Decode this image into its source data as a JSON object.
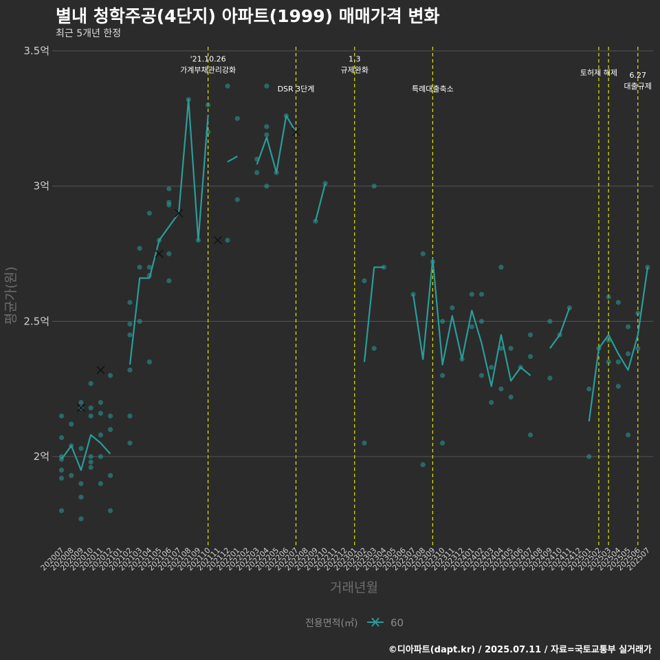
{
  "title": "별내 청학주공(4단지) 아파트(1999) 매매가격 변화",
  "subtitle": "최근 5개년 한정",
  "footer": "©디아파트(dapt.kr) / 2025.07.11 / 자료=국토교통부 실거래가",
  "colors": {
    "background": "#2b2b2b",
    "series": "#2a9d9a",
    "vline": "#e6e600",
    "grid": "#555555"
  },
  "chart_data": {
    "type": "line",
    "title": "별내 청학주공(4단지) 아파트(1999) 매매가격 변화",
    "xlabel": "거래년월",
    "ylabel": "평균가(원)",
    "ylim": [
      1.68,
      3.5
    ],
    "yticks": [
      {
        "value": 2.0,
        "label": "2억"
      },
      {
        "value": 2.5,
        "label": "2.5억"
      },
      {
        "value": 3.0,
        "label": "3억"
      },
      {
        "value": 3.5,
        "label": "3.5억"
      }
    ],
    "categories": [
      "202007",
      "202008",
      "202009",
      "202010",
      "202011",
      "202012",
      "202101",
      "202102",
      "202103",
      "202104",
      "202105",
      "202106",
      "202107",
      "202108",
      "202109",
      "202110",
      "202111",
      "202112",
      "202201",
      "202202",
      "202203",
      "202204",
      "202205",
      "202206",
      "202207",
      "202208",
      "202209",
      "202210",
      "202211",
      "202212",
      "202301",
      "202302",
      "202303",
      "202304",
      "202305",
      "202306",
      "202307",
      "202308",
      "202309",
      "202310",
      "202311",
      "202312",
      "202401",
      "202402",
      "202403",
      "202404",
      "202405",
      "202406",
      "202407",
      "202408",
      "202409",
      "202410",
      "202411",
      "202412",
      "202501",
      "202502",
      "202503",
      "202504",
      "202505",
      "202506",
      "202507"
    ],
    "legend": {
      "title": "전용면적(㎡)",
      "label": "60",
      "position": "bottom"
    },
    "series": [
      {
        "name": "60",
        "values": [
          1.99,
          2.04,
          1.95,
          2.08,
          2.05,
          2.01,
          null,
          2.34,
          2.66,
          2.66,
          2.8,
          2.85,
          2.9,
          3.32,
          2.8,
          3.26,
          null,
          3.09,
          3.11,
          null,
          3.08,
          3.18,
          3.05,
          3.26,
          3.2,
          null,
          2.87,
          3.01,
          null,
          null,
          null,
          2.35,
          2.7,
          2.7,
          null,
          null,
          2.6,
          2.36,
          2.73,
          2.34,
          2.52,
          2.36,
          2.54,
          2.42,
          2.26,
          2.45,
          2.28,
          2.33,
          2.3,
          null,
          2.4,
          2.45,
          2.55,
          null,
          2.13,
          2.4,
          2.45,
          2.38,
          2.32,
          2.45,
          2.7
        ]
      }
    ],
    "points": [
      [
        0,
        2.15
      ],
      [
        0,
        2.07
      ],
      [
        0,
        2.0
      ],
      [
        0,
        1.99
      ],
      [
        0,
        1.95
      ],
      [
        0,
        1.92
      ],
      [
        0,
        1.8
      ],
      [
        1,
        2.12
      ],
      [
        1,
        2.04
      ],
      [
        1,
        1.93
      ],
      [
        2,
        2.2
      ],
      [
        2,
        2.18
      ],
      [
        2,
        2.03
      ],
      [
        2,
        1.9
      ],
      [
        2,
        1.85
      ],
      [
        2,
        1.77
      ],
      [
        3,
        2.27
      ],
      [
        3,
        2.18
      ],
      [
        3,
        2.15
      ],
      [
        3,
        2.0
      ],
      [
        3,
        1.98
      ],
      [
        3,
        1.96
      ],
      [
        4,
        2.2
      ],
      [
        4,
        2.16
      ],
      [
        4,
        2.08
      ],
      [
        4,
        2.0
      ],
      [
        4,
        1.9
      ],
      [
        5,
        2.3
      ],
      [
        5,
        2.15
      ],
      [
        5,
        2.1
      ],
      [
        5,
        1.93
      ],
      [
        5,
        1.8
      ],
      [
        7,
        2.57
      ],
      [
        7,
        2.49
      ],
      [
        7,
        2.45
      ],
      [
        7,
        2.32
      ],
      [
        7,
        2.15
      ],
      [
        7,
        2.05
      ],
      [
        8,
        2.77
      ],
      [
        8,
        2.7
      ],
      [
        8,
        2.5
      ],
      [
        9,
        2.9
      ],
      [
        9,
        2.7
      ],
      [
        9,
        2.67
      ],
      [
        9,
        2.35
      ],
      [
        10,
        2.8
      ],
      [
        11,
        2.99
      ],
      [
        11,
        2.94
      ],
      [
        11,
        2.93
      ],
      [
        11,
        2.75
      ],
      [
        11,
        2.65
      ],
      [
        13,
        3.32
      ],
      [
        14,
        2.8
      ],
      [
        15,
        3.3
      ],
      [
        15,
        3.2
      ],
      [
        17,
        3.37
      ],
      [
        17,
        2.8
      ],
      [
        18,
        3.25
      ],
      [
        18,
        2.95
      ],
      [
        20,
        3.1
      ],
      [
        20,
        3.05
      ],
      [
        21,
        3.37
      ],
      [
        21,
        3.22
      ],
      [
        21,
        3.19
      ],
      [
        21,
        3.0
      ],
      [
        22,
        3.05
      ],
      [
        23,
        3.26
      ],
      [
        26,
        2.87
      ],
      [
        27,
        3.01
      ],
      [
        31,
        2.65
      ],
      [
        31,
        2.05
      ],
      [
        32,
        3.0
      ],
      [
        32,
        2.4
      ],
      [
        33,
        2.7
      ],
      [
        36,
        2.6
      ],
      [
        37,
        2.75
      ],
      [
        37,
        1.97
      ],
      [
        38,
        2.72
      ],
      [
        39,
        2.5
      ],
      [
        39,
        2.3
      ],
      [
        39,
        2.05
      ],
      [
        40,
        2.55
      ],
      [
        41,
        2.36
      ],
      [
        42,
        2.6
      ],
      [
        42,
        2.48
      ],
      [
        43,
        2.6
      ],
      [
        43,
        2.5
      ],
      [
        43,
        2.3
      ],
      [
        44,
        2.33
      ],
      [
        44,
        2.2
      ],
      [
        45,
        2.7
      ],
      [
        45,
        2.4
      ],
      [
        45,
        2.25
      ],
      [
        46,
        2.4
      ],
      [
        46,
        2.22
      ],
      [
        47,
        2.33
      ],
      [
        48,
        2.45
      ],
      [
        48,
        2.37
      ],
      [
        48,
        2.08
      ],
      [
        50,
        2.5
      ],
      [
        50,
        2.29
      ],
      [
        51,
        2.45
      ],
      [
        52,
        2.55
      ],
      [
        54,
        2.25
      ],
      [
        54,
        2.0
      ],
      [
        55,
        2.4
      ],
      [
        56,
        2.59
      ],
      [
        56,
        2.43
      ],
      [
        56,
        2.35
      ],
      [
        57,
        2.57
      ],
      [
        57,
        2.35
      ],
      [
        57,
        2.26
      ],
      [
        58,
        2.38
      ],
      [
        58,
        2.08
      ],
      [
        58,
        2.48
      ],
      [
        59,
        2.53
      ],
      [
        59,
        2.4
      ],
      [
        60,
        2.7
      ]
    ],
    "cross_markers": [
      [
        2,
        2.18
      ],
      [
        4,
        2.32
      ],
      [
        10,
        2.75
      ],
      [
        12,
        2.9
      ],
      [
        16,
        2.8
      ],
      [
        24,
        3.2
      ]
    ],
    "vlines": [
      {
        "x_index": 15,
        "label_lines": [
          "'21.10.26",
          "가계부채관리강화"
        ],
        "label_y": 3.43
      },
      {
        "x_index": 24,
        "label_lines": [
          "DSR 3단계"
        ],
        "label_y": 3.36
      },
      {
        "x_index": 30,
        "label_lines": [
          "1.3",
          "규제완화"
        ],
        "label_y": 3.43
      },
      {
        "x_index": 38,
        "label_lines": [
          "특례대출축소"
        ],
        "label_y": 3.36
      },
      {
        "x_index": 55,
        "label_lines": [
          "토허제 해제"
        ],
        "label_y": 3.42
      },
      {
        "x_index": 56,
        "label_lines": [],
        "label_y": 3.42
      },
      {
        "x_index": 59,
        "label_lines": [
          "6.27",
          "대출규제"
        ],
        "label_y": 3.37
      }
    ]
  }
}
